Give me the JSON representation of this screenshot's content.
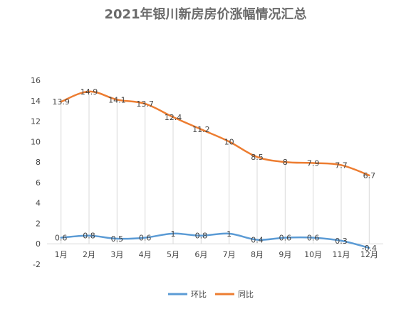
{
  "chart_data": {
    "type": "line",
    "title": "2021年银川新房房价涨幅情况汇总",
    "xlabel": "",
    "ylabel": "",
    "categories": [
      "1月",
      "2月",
      "3月",
      "4月",
      "5月",
      "6月",
      "7月",
      "8月",
      "9月",
      "10月",
      "11月",
      "12月"
    ],
    "yticks": [
      "-2",
      "0",
      "2",
      "4",
      "6",
      "8",
      "10",
      "12",
      "14",
      "16"
    ],
    "ylim": [
      -2,
      16
    ],
    "grid": "vertical-lines-at-points",
    "legend_position": "bottom",
    "series": [
      {
        "name": "环比",
        "color": "#5b9bd5",
        "values": [
          0.6,
          0.8,
          0.5,
          0.6,
          1,
          0.8,
          1,
          0.4,
          0.6,
          0.6,
          0.3,
          -0.4
        ],
        "labels": [
          "0.6",
          "0.8",
          "0.5",
          "0.6",
          "1",
          "0.8",
          "1",
          "0.4",
          "0.6",
          "0.6",
          "0.3",
          "-0.4"
        ]
      },
      {
        "name": "同比",
        "color": "#ed7d31",
        "values": [
          13.9,
          14.9,
          14.1,
          13.7,
          12.4,
          11.2,
          10,
          8.5,
          8,
          7.9,
          7.7,
          6.7
        ],
        "labels": [
          "13.9",
          "14.9",
          "14.1",
          "13.7",
          "12.4",
          "11.2",
          "10",
          "8.5",
          "8",
          "7.9",
          "7.7",
          "6.7"
        ]
      }
    ]
  }
}
